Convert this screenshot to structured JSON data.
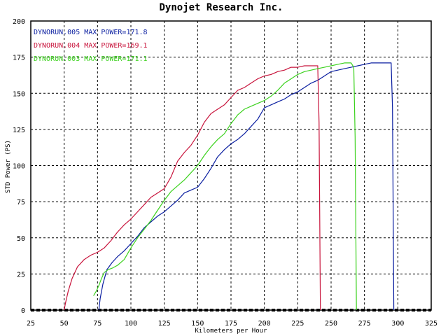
{
  "chart_data": {
    "type": "line",
    "title": "Dynojet  Research  Inc.",
    "xlabel": "Kilometers per Hour",
    "ylabel": "STD Power (PS)",
    "xlim": [
      25,
      325
    ],
    "ylim": [
      0,
      200
    ],
    "xticks": [
      25,
      50,
      75,
      100,
      125,
      150,
      175,
      200,
      225,
      250,
      275,
      300,
      325
    ],
    "yticks": [
      0,
      25,
      50,
      75,
      100,
      125,
      150,
      175,
      200
    ],
    "grid": true,
    "legend_position": "top-left",
    "series": [
      {
        "name": "DYNORUN.005",
        "legend_label": "DYNORUN.005  MAX POWER=171.8",
        "color": "#0a1ea0",
        "x": [
          76,
          77,
          79,
          82,
          86,
          90,
          95,
          100,
          105,
          110,
          115,
          120,
          125,
          130,
          135,
          140,
          145,
          150,
          155,
          160,
          165,
          170,
          175,
          180,
          185,
          190,
          195,
          200,
          205,
          210,
          215,
          220,
          225,
          230,
          235,
          240,
          245,
          250,
          255,
          260,
          265,
          270,
          275,
          280,
          285,
          290,
          295,
          296,
          297
        ],
        "y": [
          0,
          8,
          18,
          28,
          33,
          37,
          41,
          46,
          51,
          57,
          61,
          65,
          68,
          72,
          76,
          81,
          83,
          85,
          91,
          98,
          106,
          111,
          115,
          118,
          122,
          127,
          132,
          140,
          142,
          144,
          146,
          149,
          151,
          154,
          157,
          159,
          162,
          165,
          166,
          167,
          168,
          169,
          170,
          171,
          171,
          171,
          171,
          140,
          0
        ]
      },
      {
        "name": "DYNORUN.004",
        "legend_label": "DYNORUN.004  MAX POWER=169.1",
        "color": "#c8143c",
        "x": [
          50,
          51,
          53,
          56,
          60,
          65,
          70,
          75,
          80,
          85,
          90,
          95,
          100,
          105,
          110,
          115,
          120,
          125,
          130,
          135,
          140,
          145,
          150,
          155,
          160,
          165,
          170,
          175,
          180,
          185,
          190,
          195,
          200,
          205,
          210,
          215,
          220,
          225,
          230,
          235,
          240,
          241,
          242
        ],
        "y": [
          0,
          5,
          13,
          22,
          30,
          35,
          38,
          40,
          43,
          48,
          54,
          59,
          63,
          68,
          73,
          78,
          81,
          84,
          92,
          103,
          109,
          114,
          121,
          130,
          136,
          139,
          142,
          147,
          152,
          154,
          157,
          160,
          162,
          163,
          165,
          166,
          168,
          168,
          169,
          169,
          169,
          130,
          0
        ]
      },
      {
        "name": "DYNORUN.003",
        "legend_label": "DYNORUN.003  MAX POWER=171.1",
        "color": "#3cd21e",
        "x": [
          72,
          74,
          76,
          78,
          80,
          83,
          86,
          90,
          95,
          100,
          105,
          110,
          115,
          120,
          125,
          130,
          135,
          140,
          145,
          150,
          155,
          160,
          165,
          170,
          175,
          180,
          185,
          190,
          195,
          200,
          205,
          210,
          215,
          220,
          225,
          230,
          235,
          240,
          245,
          250,
          255,
          260,
          265,
          267,
          268,
          269
        ],
        "y": [
          10,
          13,
          17,
          22,
          26,
          28,
          29,
          31,
          35,
          43,
          50,
          56,
          62,
          69,
          76,
          82,
          86,
          90,
          95,
          100,
          107,
          113,
          118,
          122,
          129,
          135,
          139,
          141,
          143,
          145,
          148,
          152,
          157,
          160,
          163,
          165,
          166,
          167,
          168,
          169,
          170,
          171,
          171,
          168,
          120,
          0
        ]
      }
    ]
  }
}
